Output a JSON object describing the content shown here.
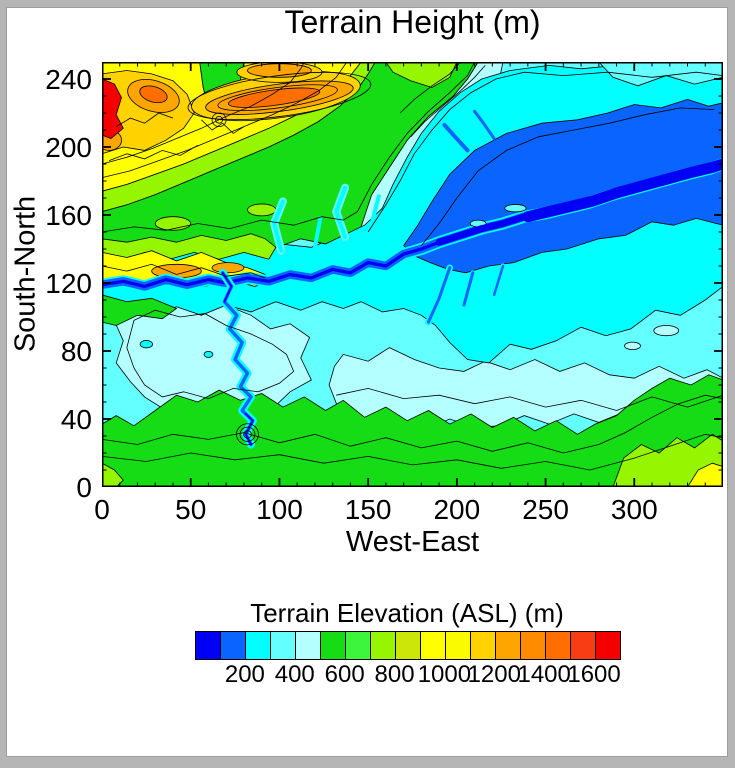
{
  "page": {
    "background": "#b5b5b5",
    "canvas": "#ffffff"
  },
  "title": "Terrain Height   (m)",
  "axes": {
    "xlabel": "West-East",
    "ylabel": "South-North",
    "x_range": [
      0,
      350
    ],
    "y_range": [
      0,
      250
    ],
    "x_major_ticks": [
      0,
      50,
      100,
      150,
      200,
      250,
      300
    ],
    "y_major_ticks": [
      0,
      40,
      80,
      120,
      160,
      200,
      240
    ],
    "x_major_step": 50,
    "y_major_step": 40,
    "minor_step": 10
  },
  "colorbar": {
    "title": "Terrain Elevation (ASL)  (m)",
    "tick_labels": [
      200,
      400,
      600,
      800,
      1000,
      1200,
      1400,
      1600
    ],
    "colors": [
      "#0000F5",
      "#0A64FF",
      "#00FFFF",
      "#64FFFF",
      "#B4FFFF",
      "#16DC16",
      "#3CF53C",
      "#96F500",
      "#CDE60A",
      "#FFFF00",
      "#FAFA00",
      "#FFD200",
      "#FFA500",
      "#FF8C00",
      "#FF6E00",
      "#F83C14",
      "#F50000"
    ]
  },
  "chart_data": {
    "type": "filled-contour",
    "title": "Terrain Height (m)",
    "xlabel": "West-East",
    "ylabel": "South-North",
    "x_range": [
      0,
      350
    ],
    "y_range": [
      0,
      250
    ],
    "units": "m",
    "contour_interval": 100,
    "levels": [
      100,
      200,
      300,
      400,
      500,
      600,
      700,
      800,
      900,
      1000,
      1100,
      1200,
      1300,
      1400,
      1500,
      1600
    ],
    "palette": [
      "#0000F5",
      "#0A64FF",
      "#00FFFF",
      "#64FFFF",
      "#B4FFFF",
      "#16DC16",
      "#3CF53C",
      "#96F500",
      "#CDE60A",
      "#FFFF00",
      "#FAFA00",
      "#FFD200",
      "#FFA500",
      "#FF8C00",
      "#FF6E00",
      "#F83C14",
      "#F50000"
    ],
    "colorbar_title": "Terrain Elevation (ASL)  (m)",
    "colorbar_labels": [
      200,
      400,
      600,
      800,
      1000,
      1200,
      1400,
      1600
    ],
    "grid": false,
    "legend_position": "bottom"
  }
}
